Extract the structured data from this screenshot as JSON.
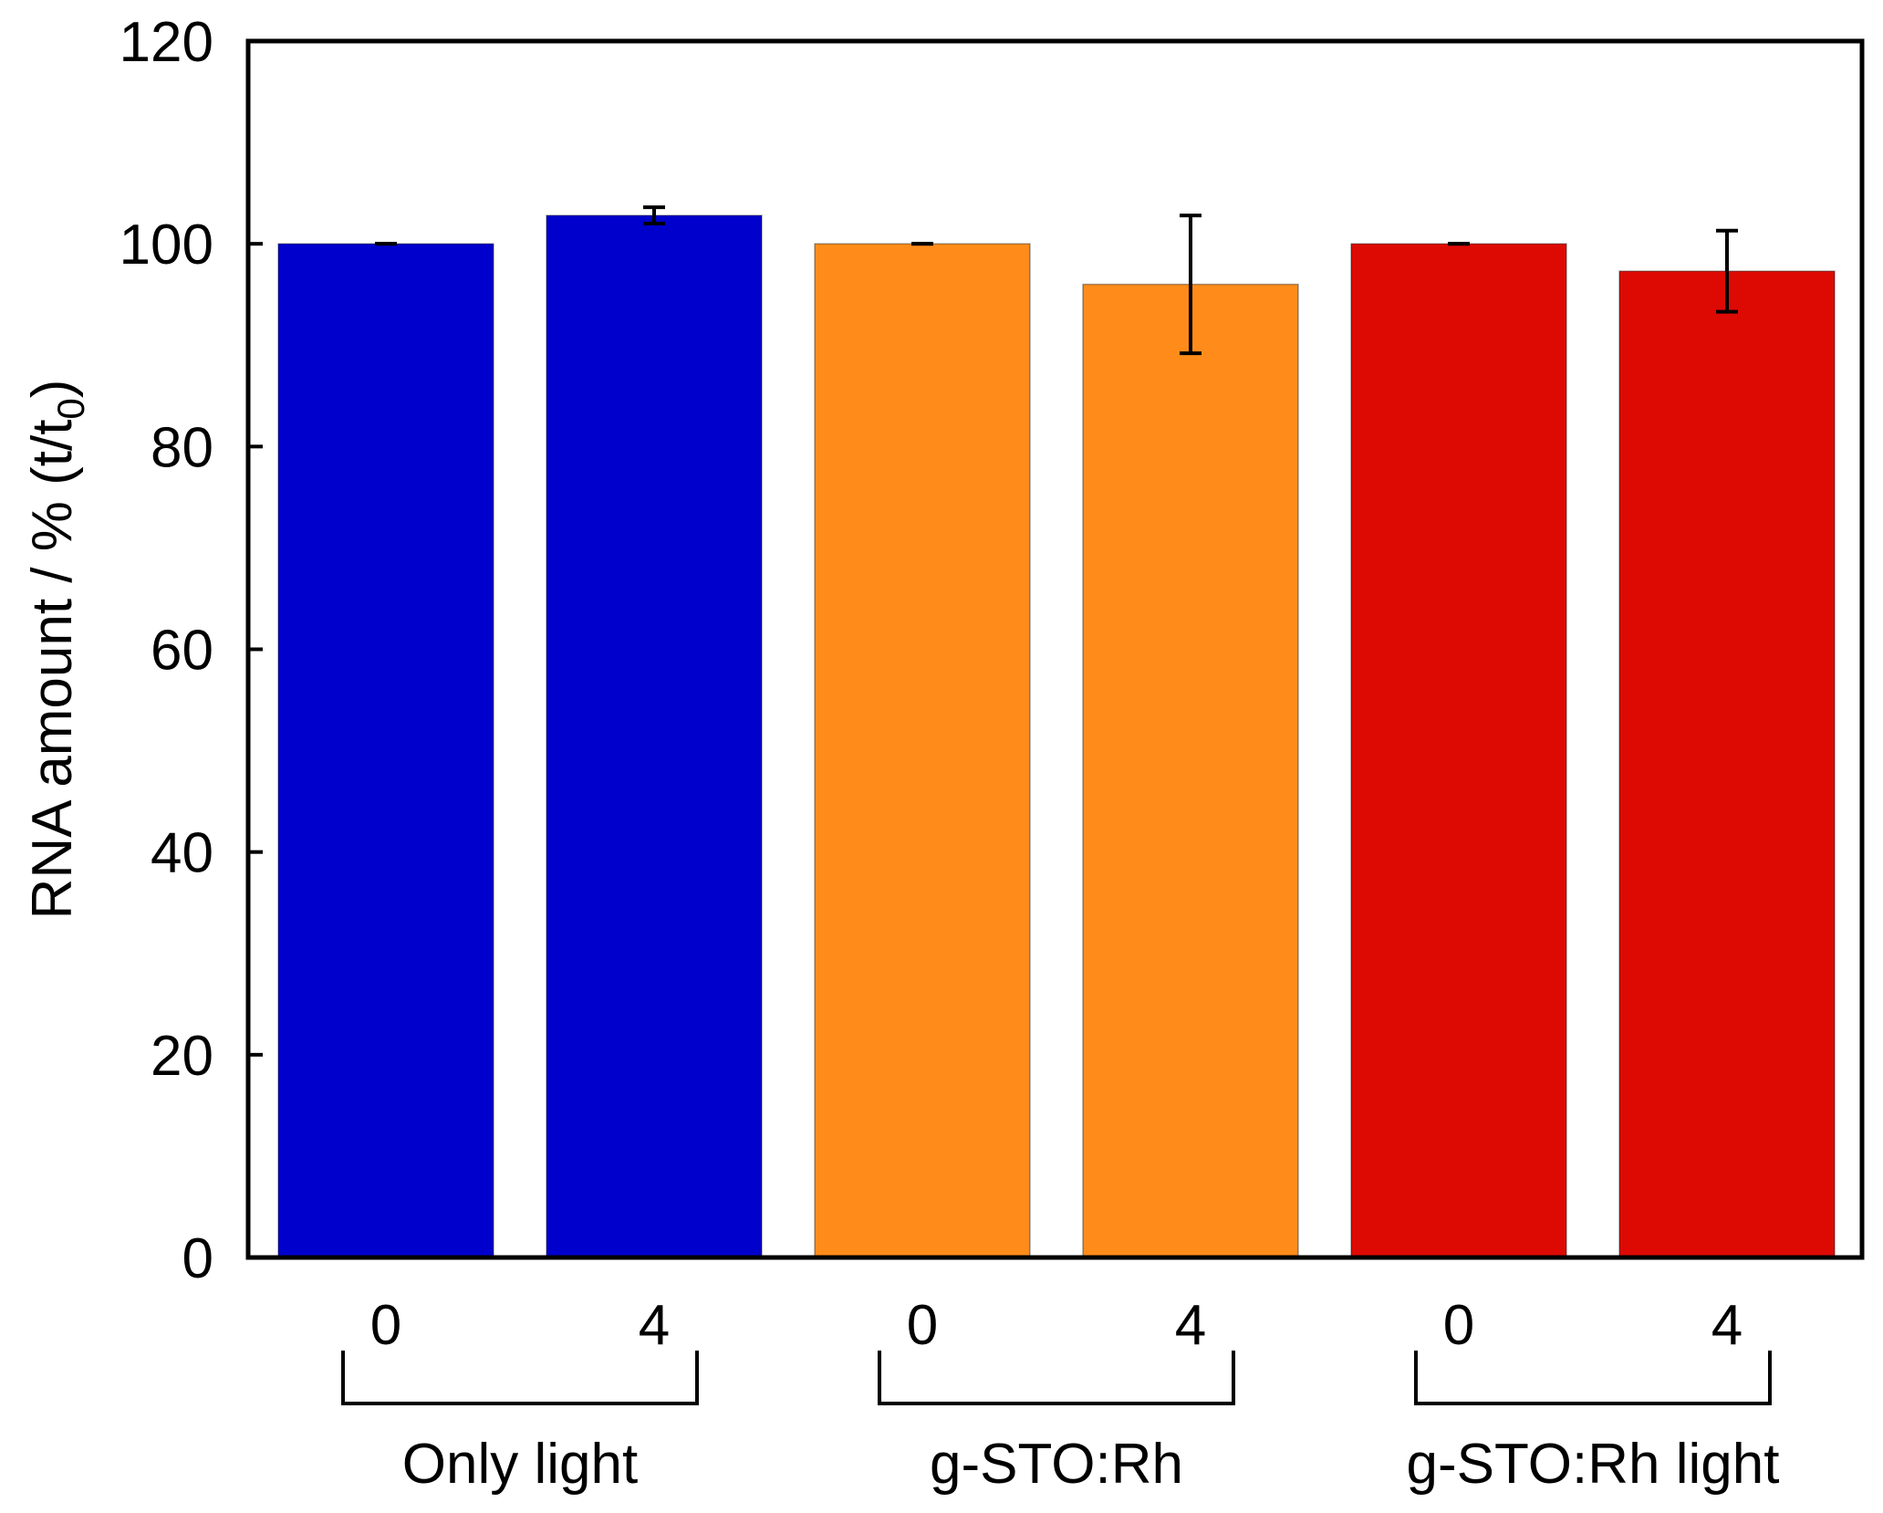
{
  "chart_data": {
    "type": "bar",
    "title": "",
    "xlabel": "",
    "ylabel": "RNA amount / % (t/t",
    "ylabel_subscript": "0",
    "ylabel_suffix": ")",
    "ylim": [
      0,
      120
    ],
    "yticks": [
      0,
      20,
      40,
      60,
      80,
      100,
      120
    ],
    "grid": false,
    "categories": [
      "0",
      "4",
      "0",
      "4",
      "0",
      "4"
    ],
    "groups": [
      {
        "label": "Only light",
        "categories": [
          "0",
          "4"
        ],
        "color": "#0000cc"
      },
      {
        "label": "g-STO:Rh",
        "categories": [
          "0",
          "4"
        ],
        "color": "#ff8c1a"
      },
      {
        "label": "g-STO:Rh light",
        "categories": [
          "0",
          "4"
        ],
        "color": "#dd0a04"
      }
    ],
    "bars": [
      {
        "group": "Only light",
        "category": "0",
        "value": 100.0,
        "error": 0.0,
        "color": "#0000cc"
      },
      {
        "group": "Only light",
        "category": "4",
        "value": 102.8,
        "error": 0.8,
        "color": "#0000cc"
      },
      {
        "group": "g-STO:Rh",
        "category": "0",
        "value": 100.0,
        "error": 0.0,
        "color": "#ff8c1a"
      },
      {
        "group": "g-STO:Rh",
        "category": "4",
        "value": 96.0,
        "error": 6.8,
        "color": "#ff8c1a"
      },
      {
        "group": "g-STO:Rh light",
        "category": "0",
        "value": 100.0,
        "error": 0.0,
        "color": "#dd0a04"
      },
      {
        "group": "g-STO:Rh light",
        "category": "4",
        "value": 97.3,
        "error": 4.0,
        "color": "#dd0a04"
      }
    ]
  }
}
